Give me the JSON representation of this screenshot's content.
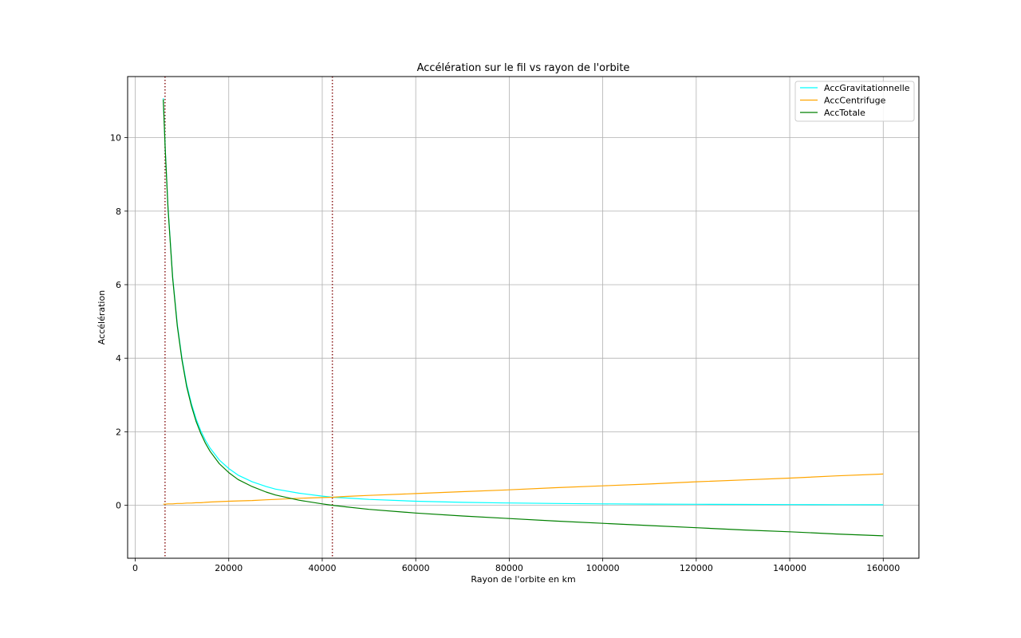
{
  "chart_data": {
    "type": "line",
    "title": "Accélération sur le fil vs rayon de l'orbite",
    "xlabel": "Rayon de l'orbite en km",
    "ylabel": "Accélération",
    "xlim": [
      -1630,
      167630
    ],
    "ylim": [
      -1.44,
      11.66
    ],
    "xticks": [
      0,
      20000,
      40000,
      60000,
      80000,
      100000,
      120000,
      140000,
      160000
    ],
    "yticks": [
      0,
      2,
      4,
      6,
      8,
      10
    ],
    "grid": true,
    "legend_position": "top-right",
    "x": [
      6000,
      6400,
      7000,
      8000,
      9000,
      10000,
      11000,
      12000,
      13000,
      14000,
      15000,
      16000,
      18000,
      20000,
      22000,
      25000,
      28000,
      30000,
      35000,
      40000,
      42200,
      45000,
      50000,
      60000,
      70000,
      80000,
      90000,
      100000,
      110000,
      120000,
      130000,
      140000,
      150000,
      160000
    ],
    "series": [
      {
        "name": "AccGravitationnelle",
        "color": "#00ffff",
        "values": [
          11.07,
          9.73,
          8.13,
          6.23,
          4.92,
          3.99,
          3.29,
          2.77,
          2.36,
          2.03,
          1.77,
          1.56,
          1.23,
          1.0,
          0.82,
          0.64,
          0.51,
          0.44,
          0.33,
          0.25,
          0.22,
          0.2,
          0.16,
          0.11,
          0.081,
          0.062,
          0.049,
          0.04,
          0.033,
          0.028,
          0.024,
          0.02,
          0.018,
          0.016
        ]
      },
      {
        "name": "AccCentrifuge",
        "color": "#ffa500",
        "values": [
          0.03,
          0.03,
          0.04,
          0.04,
          0.05,
          0.05,
          0.06,
          0.06,
          0.07,
          0.07,
          0.08,
          0.09,
          0.1,
          0.11,
          0.12,
          0.13,
          0.15,
          0.16,
          0.19,
          0.21,
          0.22,
          0.24,
          0.27,
          0.32,
          0.37,
          0.42,
          0.48,
          0.53,
          0.58,
          0.64,
          0.69,
          0.74,
          0.8,
          0.85
        ]
      },
      {
        "name": "AccTotale",
        "color": "#008000",
        "values": [
          11.04,
          9.7,
          8.09,
          6.19,
          4.87,
          3.94,
          3.23,
          2.71,
          2.29,
          1.96,
          1.69,
          1.47,
          1.13,
          0.89,
          0.7,
          0.51,
          0.36,
          0.28,
          0.14,
          0.04,
          0.0,
          -0.04,
          -0.11,
          -0.21,
          -0.29,
          -0.36,
          -0.43,
          -0.49,
          -0.55,
          -0.61,
          -0.67,
          -0.72,
          -0.78,
          -0.83
        ]
      }
    ],
    "vlines": [
      {
        "x": 6371,
        "color": "#8b1a1a",
        "style": "dotted"
      },
      {
        "x": 42164,
        "color": "#8b1a1a",
        "style": "dotted"
      }
    ]
  }
}
